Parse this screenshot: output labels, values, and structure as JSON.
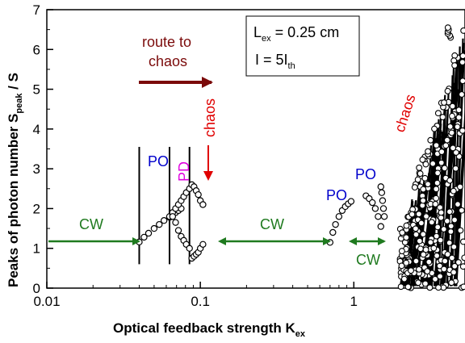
{
  "chart_data": {
    "type": "scatter",
    "title": "",
    "xscale": "log",
    "xlim": [
      0.01,
      5.3
    ],
    "ylim": [
      0,
      7
    ],
    "xticks": [
      "0.01",
      "0.1",
      "1"
    ],
    "xtick_values": [
      0.01,
      0.1,
      1
    ],
    "yticks": [
      "0",
      "1",
      "2",
      "3",
      "4",
      "5",
      "6",
      "7"
    ],
    "xlabel": "Optical feedback strength  K",
    "xlabel_sub": "ex",
    "ylabel": "Peaks of photon number  S",
    "ylabel_sub": "peak",
    "ylabel_suffix": " / S",
    "ylabel_overbar": "S",
    "legend_box": {
      "line1_prefix": "L",
      "line1_sub": "ex",
      "line1_value": " = 0.25 cm",
      "line2_prefix": "I",
      "line2_value": "   = 5I",
      "line2_sub": "th"
    },
    "vertical_lines_x": [
      0.04,
      0.063,
      0.085
    ],
    "annotations": {
      "route_to_chaos": [
        "route to",
        "chaos"
      ],
      "chaos_red_1": "chaos",
      "chaos_red_2": "chaos",
      "cw_1": "CW",
      "cw_2": "CW",
      "cw_3": "CW",
      "po_1": "PO",
      "po_2": "PO",
      "po_3": "PO",
      "pd": "PD"
    },
    "colors": {
      "route_arrow": "#7b0a0a",
      "chaos": "#e00000",
      "cw": "#1f7a1f",
      "po": "#0000cc",
      "pd": "#e000e0"
    },
    "series": [
      {
        "segment": "cw-low",
        "x": [
          0.04,
          0.043,
          0.046,
          0.05,
          0.054,
          0.058,
          0.063
        ],
        "y": [
          1.16,
          1.28,
          1.38,
          1.5,
          1.6,
          1.7,
          1.78
        ]
      },
      {
        "segment": "po-low",
        "x": [
          0.063,
          0.066,
          0.069,
          0.072,
          0.075
        ],
        "y": [
          1.8,
          1.85,
          1.9,
          1.95,
          2.0
        ]
      },
      {
        "segment": "pd-branch-upper",
        "x": [
          0.066,
          0.069,
          0.072,
          0.075,
          0.078,
          0.081,
          0.085
        ],
        "y": [
          1.9,
          2.0,
          2.1,
          2.2,
          2.3,
          2.4,
          2.5
        ]
      },
      {
        "segment": "pd-branch-lower",
        "x": [
          0.066,
          0.069,
          0.072,
          0.075,
          0.078,
          0.081,
          0.085
        ],
        "y": [
          1.8,
          1.65,
          1.45,
          1.3,
          1.2,
          1.1,
          1.0
        ]
      },
      {
        "segment": "chaos-low-1",
        "x": [
          0.088,
          0.091,
          0.094,
          0.097,
          0.1,
          0.104
        ],
        "y": [
          2.6,
          2.55,
          2.45,
          2.35,
          2.2,
          2.1
        ]
      },
      {
        "segment": "chaos-low-2",
        "x": [
          0.088,
          0.091,
          0.094,
          0.097,
          0.1,
          0.104
        ],
        "y": [
          0.75,
          0.8,
          0.85,
          0.9,
          1.0,
          1.1
        ]
      },
      {
        "segment": "po-mid",
        "x": [
          0.7,
          0.73,
          0.76,
          0.8,
          0.84,
          0.88,
          0.92,
          0.96
        ],
        "y": [
          1.15,
          1.4,
          1.6,
          1.8,
          1.95,
          2.05,
          2.12,
          2.18
        ]
      },
      {
        "segment": "po-high",
        "x": [
          1.2,
          1.26,
          1.32,
          1.38,
          1.44,
          1.5
        ],
        "y": [
          2.32,
          2.25,
          2.15,
          2.0,
          1.8,
          1.55
        ]
      },
      {
        "segment": "po-high-2",
        "x": [
          1.5,
          1.52,
          1.54,
          1.56,
          1.58
        ],
        "y": [
          2.55,
          2.4,
          2.2,
          2.0,
          1.8
        ]
      }
    ]
  }
}
